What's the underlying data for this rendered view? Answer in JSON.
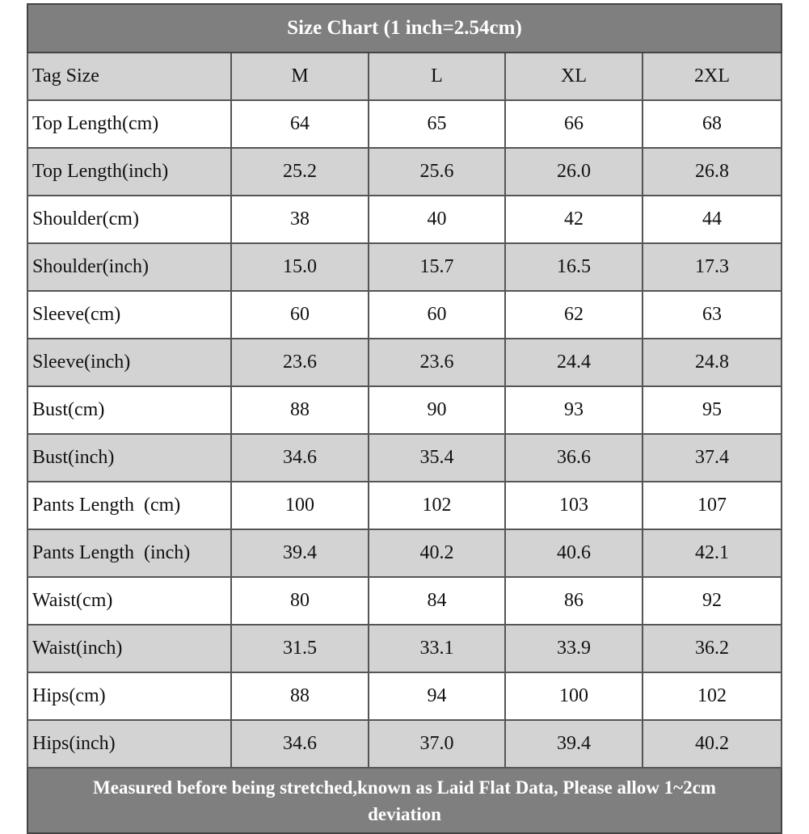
{
  "table": {
    "title": "Size Chart (1 inch=2.54cm)",
    "header": [
      "Tag Size",
      "M",
      "L",
      "XL",
      "2XL"
    ],
    "rows": [
      [
        "Top Length(cm)",
        "64",
        "65",
        "66",
        "68"
      ],
      [
        "Top Length(inch)",
        "25.2",
        "25.6",
        "26.0",
        "26.8"
      ],
      [
        "Shoulder(cm)",
        "38",
        "40",
        "42",
        "44"
      ],
      [
        "Shoulder(inch)",
        "15.0",
        "15.7",
        "16.5",
        "17.3"
      ],
      [
        "Sleeve(cm)",
        "60",
        "60",
        "62",
        "63"
      ],
      [
        "Sleeve(inch)",
        "23.6",
        "23.6",
        "24.4",
        "24.8"
      ],
      [
        "Bust(cm)",
        "88",
        "90",
        "93",
        "95"
      ],
      [
        "Bust(inch)",
        "34.6",
        "35.4",
        "36.6",
        "37.4"
      ],
      [
        "Pants Length  (cm)",
        "100",
        "102",
        "103",
        "107"
      ],
      [
        "Pants Length  (inch)",
        "39.4",
        "40.2",
        "40.6",
        "42.1"
      ],
      [
        "Waist(cm)",
        "80",
        "84",
        "86",
        "92"
      ],
      [
        "Waist(inch)",
        "31.5",
        "33.1",
        "33.9",
        "36.2"
      ],
      [
        "Hips(cm)",
        "88",
        "94",
        "100",
        "102"
      ],
      [
        "Hips(inch)",
        "34.6",
        "37.0",
        "39.4",
        "40.2"
      ]
    ],
    "footer": "Measured before being stretched,known as Laid Flat Data, Please allow 1~2cm deviation"
  }
}
